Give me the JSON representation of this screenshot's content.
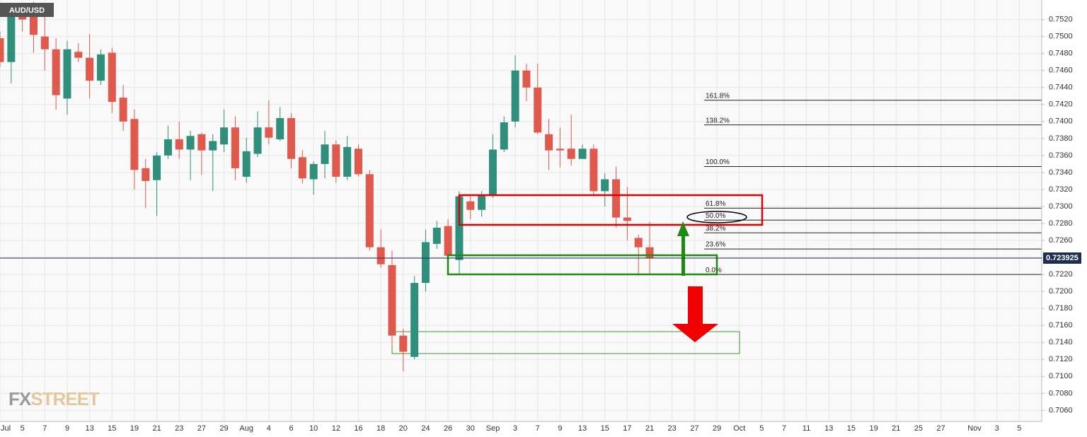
{
  "chart_data": {
    "type": "candlestick",
    "title": "AUD/USD",
    "watermark": [
      "FX",
      "STREET"
    ],
    "up_color": "#2f8f7a",
    "down_color": "#e0594d",
    "grid": true,
    "categories": [
      "Jul",
      null,
      "5",
      null,
      "7",
      null,
      "9",
      null,
      "13",
      null,
      "15",
      null,
      "19",
      null,
      "21",
      null,
      "23",
      null,
      "27",
      null,
      "29",
      null,
      "Aug",
      null,
      "4",
      null,
      "6",
      null,
      "10",
      null,
      "12",
      null,
      "16",
      null,
      "18",
      null,
      "20",
      null,
      "24",
      null,
      "26",
      null,
      "30",
      null,
      "Sep",
      null,
      "3",
      null,
      "7",
      null,
      "9",
      null,
      "13",
      null,
      "15",
      null,
      "17",
      null,
      "21",
      null,
      "23",
      null,
      "27",
      null,
      "29",
      null,
      "Oct",
      null,
      "5",
      null,
      "7",
      null,
      "11",
      null,
      "13",
      null,
      "15",
      null,
      "19",
      null,
      "21",
      null,
      "25",
      null,
      "27",
      null,
      null,
      "Nov",
      null,
      "3",
      null,
      "5",
      null
    ],
    "open": [
      0.7498,
      0.747,
      0.7527,
      0.7539,
      0.75,
      0.7485,
      0.7427,
      0.7482,
      0.7475,
      0.7448,
      0.7481,
      0.7428,
      0.7403,
      0.7345,
      0.7331,
      0.736,
      0.7379,
      0.7367,
      0.7385,
      0.7366,
      0.7373,
      0.7393,
      0.7335,
      0.7362,
      0.7393,
      0.7379,
      0.7404,
      0.7358,
      0.7332,
      0.735,
      0.7373,
      0.7335,
      0.7368,
      0.7338,
      0.7252,
      0.7231,
      0.7148,
      0.7123,
      0.721,
      0.7256,
      0.7277,
      0.7237,
      0.7306,
      0.7296,
      0.7314,
      0.7367,
      0.74,
      0.746,
      0.744,
      0.7385,
      0.7368,
      0.7368,
      0.7356,
      0.7368,
      0.7318,
      0.7332,
      0.7287,
      0.7263,
      0.7252,
      null,
      null,
      null,
      null,
      null,
      null,
      null,
      null,
      null,
      null,
      null,
      null,
      null,
      null,
      null,
      null,
      null,
      null,
      null,
      null,
      null,
      null,
      null,
      null,
      null,
      null,
      null,
      null,
      null,
      null,
      null,
      null,
      null,
      null
    ],
    "high": [
      0.7506,
      0.7535,
      0.7535,
      0.7541,
      0.7527,
      0.7498,
      0.7495,
      0.7492,
      0.7503,
      0.7485,
      0.7487,
      0.7443,
      0.7414,
      0.7356,
      0.7364,
      0.7395,
      0.74,
      0.7389,
      0.7387,
      0.7385,
      0.7414,
      0.7406,
      0.7381,
      0.7412,
      0.7425,
      0.7417,
      0.741,
      0.7366,
      0.7353,
      0.7389,
      0.7378,
      0.7383,
      0.7373,
      0.7343,
      0.7273,
      0.7248,
      0.7156,
      0.7218,
      0.7273,
      0.7283,
      0.7285,
      0.7318,
      0.7312,
      0.7318,
      0.7385,
      0.7406,
      0.7478,
      0.7468,
      0.7468,
      0.7403,
      0.7393,
      0.7408,
      0.7373,
      0.7373,
      0.7339,
      0.7347,
      0.7323,
      0.7267,
      0.7282,
      null,
      null,
      null,
      null,
      null,
      null,
      null,
      null,
      null,
      null,
      null,
      null,
      null,
      null,
      null,
      null,
      null,
      null,
      null,
      null,
      null,
      null,
      null,
      null,
      null,
      null,
      null,
      null,
      null,
      null,
      null,
      null,
      null,
      null
    ],
    "low": [
      0.7464,
      0.7445,
      0.7506,
      0.7481,
      0.746,
      0.7414,
      0.7408,
      0.747,
      0.7427,
      0.7443,
      0.741,
      0.7389,
      0.732,
      0.7298,
      0.7289,
      0.7356,
      0.7356,
      0.7331,
      0.7337,
      0.7318,
      0.7364,
      0.7331,
      0.7328,
      0.7358,
      0.7373,
      0.7377,
      0.7345,
      0.7327,
      0.7314,
      0.7333,
      0.7328,
      0.7331,
      0.7335,
      0.7248,
      0.7228,
      0.7135,
      0.7106,
      0.712,
      0.72,
      0.725,
      0.7233,
      0.7221,
      0.7285,
      0.7288,
      0.731,
      0.7364,
      0.7393,
      0.7424,
      0.7385,
      0.7343,
      0.7346,
      0.7348,
      0.7356,
      0.7312,
      0.73,
      0.7275,
      0.726,
      0.722,
      0.722,
      null,
      null,
      null,
      null,
      null,
      null,
      null,
      null,
      null,
      null,
      null,
      null,
      null,
      null,
      null,
      null,
      null,
      null,
      null,
      null,
      null,
      null,
      null,
      null,
      null,
      null,
      null,
      null,
      null,
      null,
      null,
      null,
      null,
      null
    ],
    "close": [
      0.747,
      0.7527,
      0.752,
      0.7502,
      0.7485,
      0.7431,
      0.7485,
      0.7475,
      0.7448,
      0.7479,
      0.7423,
      0.74,
      0.7343,
      0.733,
      0.736,
      0.7379,
      0.7367,
      0.7383,
      0.7366,
      0.7377,
      0.7393,
      0.7345,
      0.7365,
      0.7393,
      0.7381,
      0.7404,
      0.7356,
      0.7333,
      0.735,
      0.7373,
      0.7335,
      0.737,
      0.7338,
      0.7252,
      0.7232,
      0.7148,
      0.7129,
      0.721,
      0.7258,
      0.7275,
      0.7242,
      0.7312,
      0.7296,
      0.7314,
      0.7367,
      0.7399,
      0.746,
      0.744,
      0.7387,
      0.7366,
      0.7366,
      0.7356,
      0.7368,
      0.7318,
      0.7332,
      0.7287,
      0.7283,
      0.7252,
      0.7239,
      null,
      null,
      null,
      null,
      null,
      null,
      null,
      null,
      null,
      null,
      null,
      null,
      null,
      null,
      null,
      null,
      null,
      null,
      null,
      null,
      null,
      null,
      null,
      null,
      null,
      null,
      null,
      null,
      null,
      null,
      null,
      null,
      null,
      null
    ],
    "ylim": [
      0.7047,
      0.7543
    ],
    "yticks": [
      {
        "value": 0.706,
        "label": "0.7060"
      },
      {
        "value": 0.708,
        "label": "0.7080"
      },
      {
        "value": 0.71,
        "label": "0.7100"
      },
      {
        "value": 0.712,
        "label": "0.7120"
      },
      {
        "value": 0.714,
        "label": "0.7140"
      },
      {
        "value": 0.716,
        "label": "0.7160"
      },
      {
        "value": 0.718,
        "label": "0.7180"
      },
      {
        "value": 0.72,
        "label": "0.7200"
      },
      {
        "value": 0.722,
        "label": "0.7220"
      },
      {
        "value": 0.724,
        "label": "0.7240"
      },
      {
        "value": 0.726,
        "label": "0.7260"
      },
      {
        "value": 0.728,
        "label": "0.7280"
      },
      {
        "value": 0.73,
        "label": "0.7300"
      },
      {
        "value": 0.732,
        "label": "0.7320"
      },
      {
        "value": 0.734,
        "label": "0.7340"
      },
      {
        "value": 0.736,
        "label": "0.7360"
      },
      {
        "value": 0.738,
        "label": "0.7380"
      },
      {
        "value": 0.74,
        "label": "0.7400"
      },
      {
        "value": 0.742,
        "label": "0.7420"
      },
      {
        "value": 0.744,
        "label": "0.7440"
      },
      {
        "value": 0.746,
        "label": "0.7460"
      },
      {
        "value": 0.748,
        "label": "0.7480"
      },
      {
        "value": 0.75,
        "label": "0.7500"
      },
      {
        "value": 0.752,
        "label": "0.7520"
      }
    ],
    "last_price": 0.723925,
    "fib_levels": [
      {
        "label": "161.8%",
        "price": 0.7425
      },
      {
        "label": "138.2%",
        "price": 0.7396
      },
      {
        "label": "100.0%",
        "price": 0.7347
      },
      {
        "label": "61.8%",
        "price": 0.7298
      },
      {
        "label": "50.0%",
        "price": 0.7284
      },
      {
        "label": "38.2%",
        "price": 0.7269
      },
      {
        "label": "23.6%",
        "price": 0.725
      },
      {
        "label": "0.0%",
        "price": 0.722
      }
    ]
  }
}
